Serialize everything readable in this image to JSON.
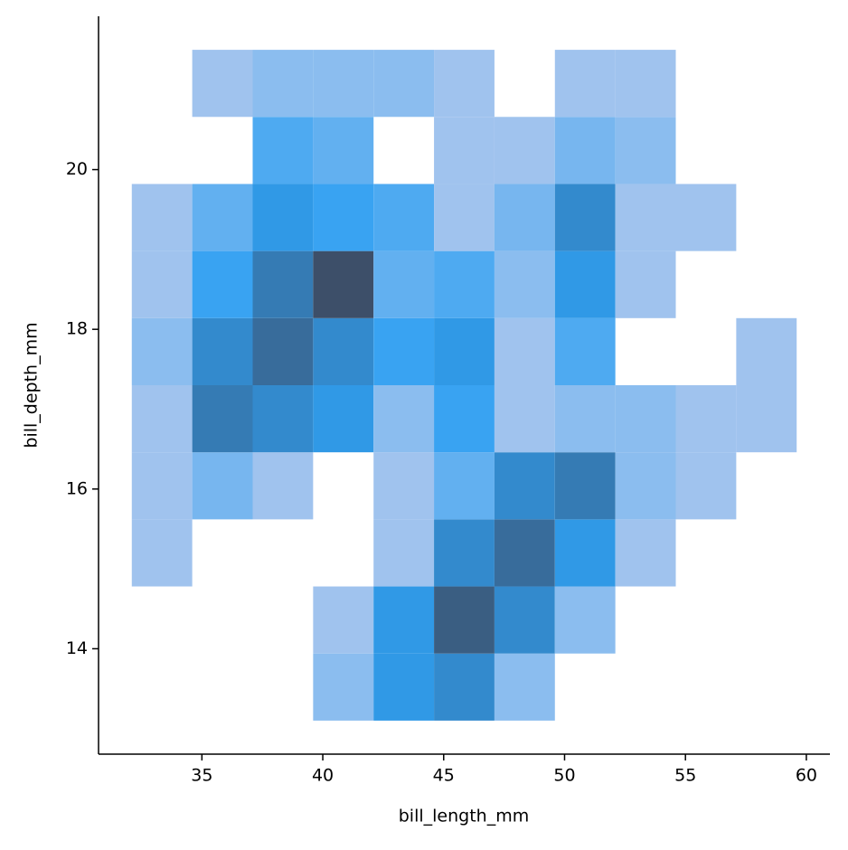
{
  "chart_data": {
    "type": "hist2d",
    "xlabel": "bill_length_mm",
    "ylabel": "bill_depth_mm",
    "x_bins": [
      32.1,
      34.6,
      37.1,
      39.6,
      42.1,
      44.6,
      47.1,
      49.6,
      52.1,
      54.6,
      57.1,
      59.6
    ],
    "y_bins": [
      13.1,
      13.94,
      14.78,
      15.62,
      16.46,
      17.3,
      18.14,
      18.98,
      19.82,
      20.66,
      21.5
    ],
    "counts": [
      [
        0,
        0,
        0,
        2,
        7,
        8,
        2,
        0,
        0,
        0,
        0
      ],
      [
        0,
        0,
        0,
        1,
        7,
        11,
        8,
        2,
        0,
        0,
        0
      ],
      [
        1,
        0,
        0,
        0,
        1,
        8,
        10,
        7,
        1,
        0,
        0
      ],
      [
        1,
        3,
        1,
        0,
        1,
        4,
        8,
        9,
        2,
        1,
        0
      ],
      [
        1,
        9,
        8,
        7,
        2,
        6,
        1,
        2,
        2,
        1,
        1
      ],
      [
        2,
        8,
        10,
        8,
        6,
        7,
        1,
        5,
        0,
        0,
        1
      ],
      [
        1,
        6,
        9,
        12,
        4,
        5,
        2,
        7,
        1,
        0,
        0
      ],
      [
        1,
        4,
        7,
        6,
        5,
        1,
        3,
        8,
        1,
        1,
        0
      ],
      [
        0,
        0,
        5,
        4,
        0,
        1,
        1,
        3,
        2,
        0,
        0
      ],
      [
        0,
        1,
        2,
        2,
        2,
        1,
        0,
        1,
        1,
        0,
        0
      ]
    ],
    "cmap": [
      "#a0c3ee",
      "#2fa0f2",
      "#3d4f69"
    ],
    "xlim": [
      30.725,
      60.975
    ],
    "ylim": [
      12.68,
      21.92
    ],
    "xticks": [
      35,
      40,
      45,
      50,
      55,
      60
    ],
    "yticks": [
      14,
      16,
      18,
      20
    ]
  }
}
